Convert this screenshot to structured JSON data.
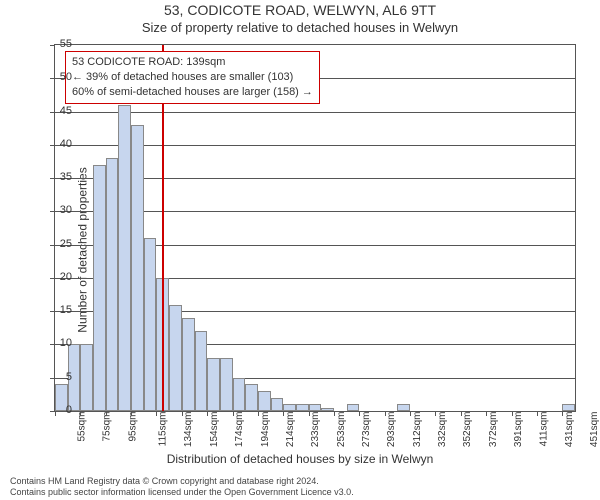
{
  "titles": {
    "main": "53, CODICOTE ROAD, WELWYN, AL6 9TT",
    "sub": "Size of property relative to detached houses in Welwyn"
  },
  "axes": {
    "ylabel": "Number of detached properties",
    "xlabel": "Distribution of detached houses by size in Welwyn",
    "ylim": [
      0,
      55
    ],
    "ytick_step": 5,
    "yticks": [
      0,
      5,
      10,
      15,
      20,
      25,
      30,
      35,
      40,
      45,
      50,
      55
    ],
    "xticks": [
      "55sqm",
      "75sqm",
      "95sqm",
      "115sqm",
      "134sqm",
      "154sqm",
      "174sqm",
      "194sqm",
      "214sqm",
      "233sqm",
      "253sqm",
      "273sqm",
      "293sqm",
      "312sqm",
      "332sqm",
      "352sqm",
      "372sqm",
      "391sqm",
      "411sqm",
      "431sqm",
      "451sqm"
    ]
  },
  "chart": {
    "type": "histogram",
    "bar_color": "#c7d6ee",
    "bar_border": "#888888",
    "background_color": "#ffffff",
    "grid_color": "#555555",
    "bar_width_ratio": 1.0,
    "bars": [
      4,
      10,
      10,
      37,
      38,
      46,
      43,
      26,
      20,
      16,
      14,
      12,
      8,
      8,
      5,
      4,
      3,
      2,
      1,
      1,
      1,
      0.5,
      0,
      1,
      0,
      0,
      0,
      1,
      0,
      0,
      0,
      0,
      0,
      0,
      0,
      0,
      0,
      0,
      0,
      0,
      1
    ],
    "marker": {
      "position_index": 8.4,
      "color": "#cc0000"
    }
  },
  "infobox": {
    "border_color": "#cc0000",
    "lines": [
      "53 CODICOTE ROAD: 139sqm",
      "← 39% of detached houses are smaller (103)",
      "60% of semi-detached houses are larger (158) →"
    ]
  },
  "footer": {
    "line1": "Contains HM Land Registry data © Crown copyright and database right 2024.",
    "line2": "Contains public sector information licensed under the Open Government Licence v3.0."
  }
}
